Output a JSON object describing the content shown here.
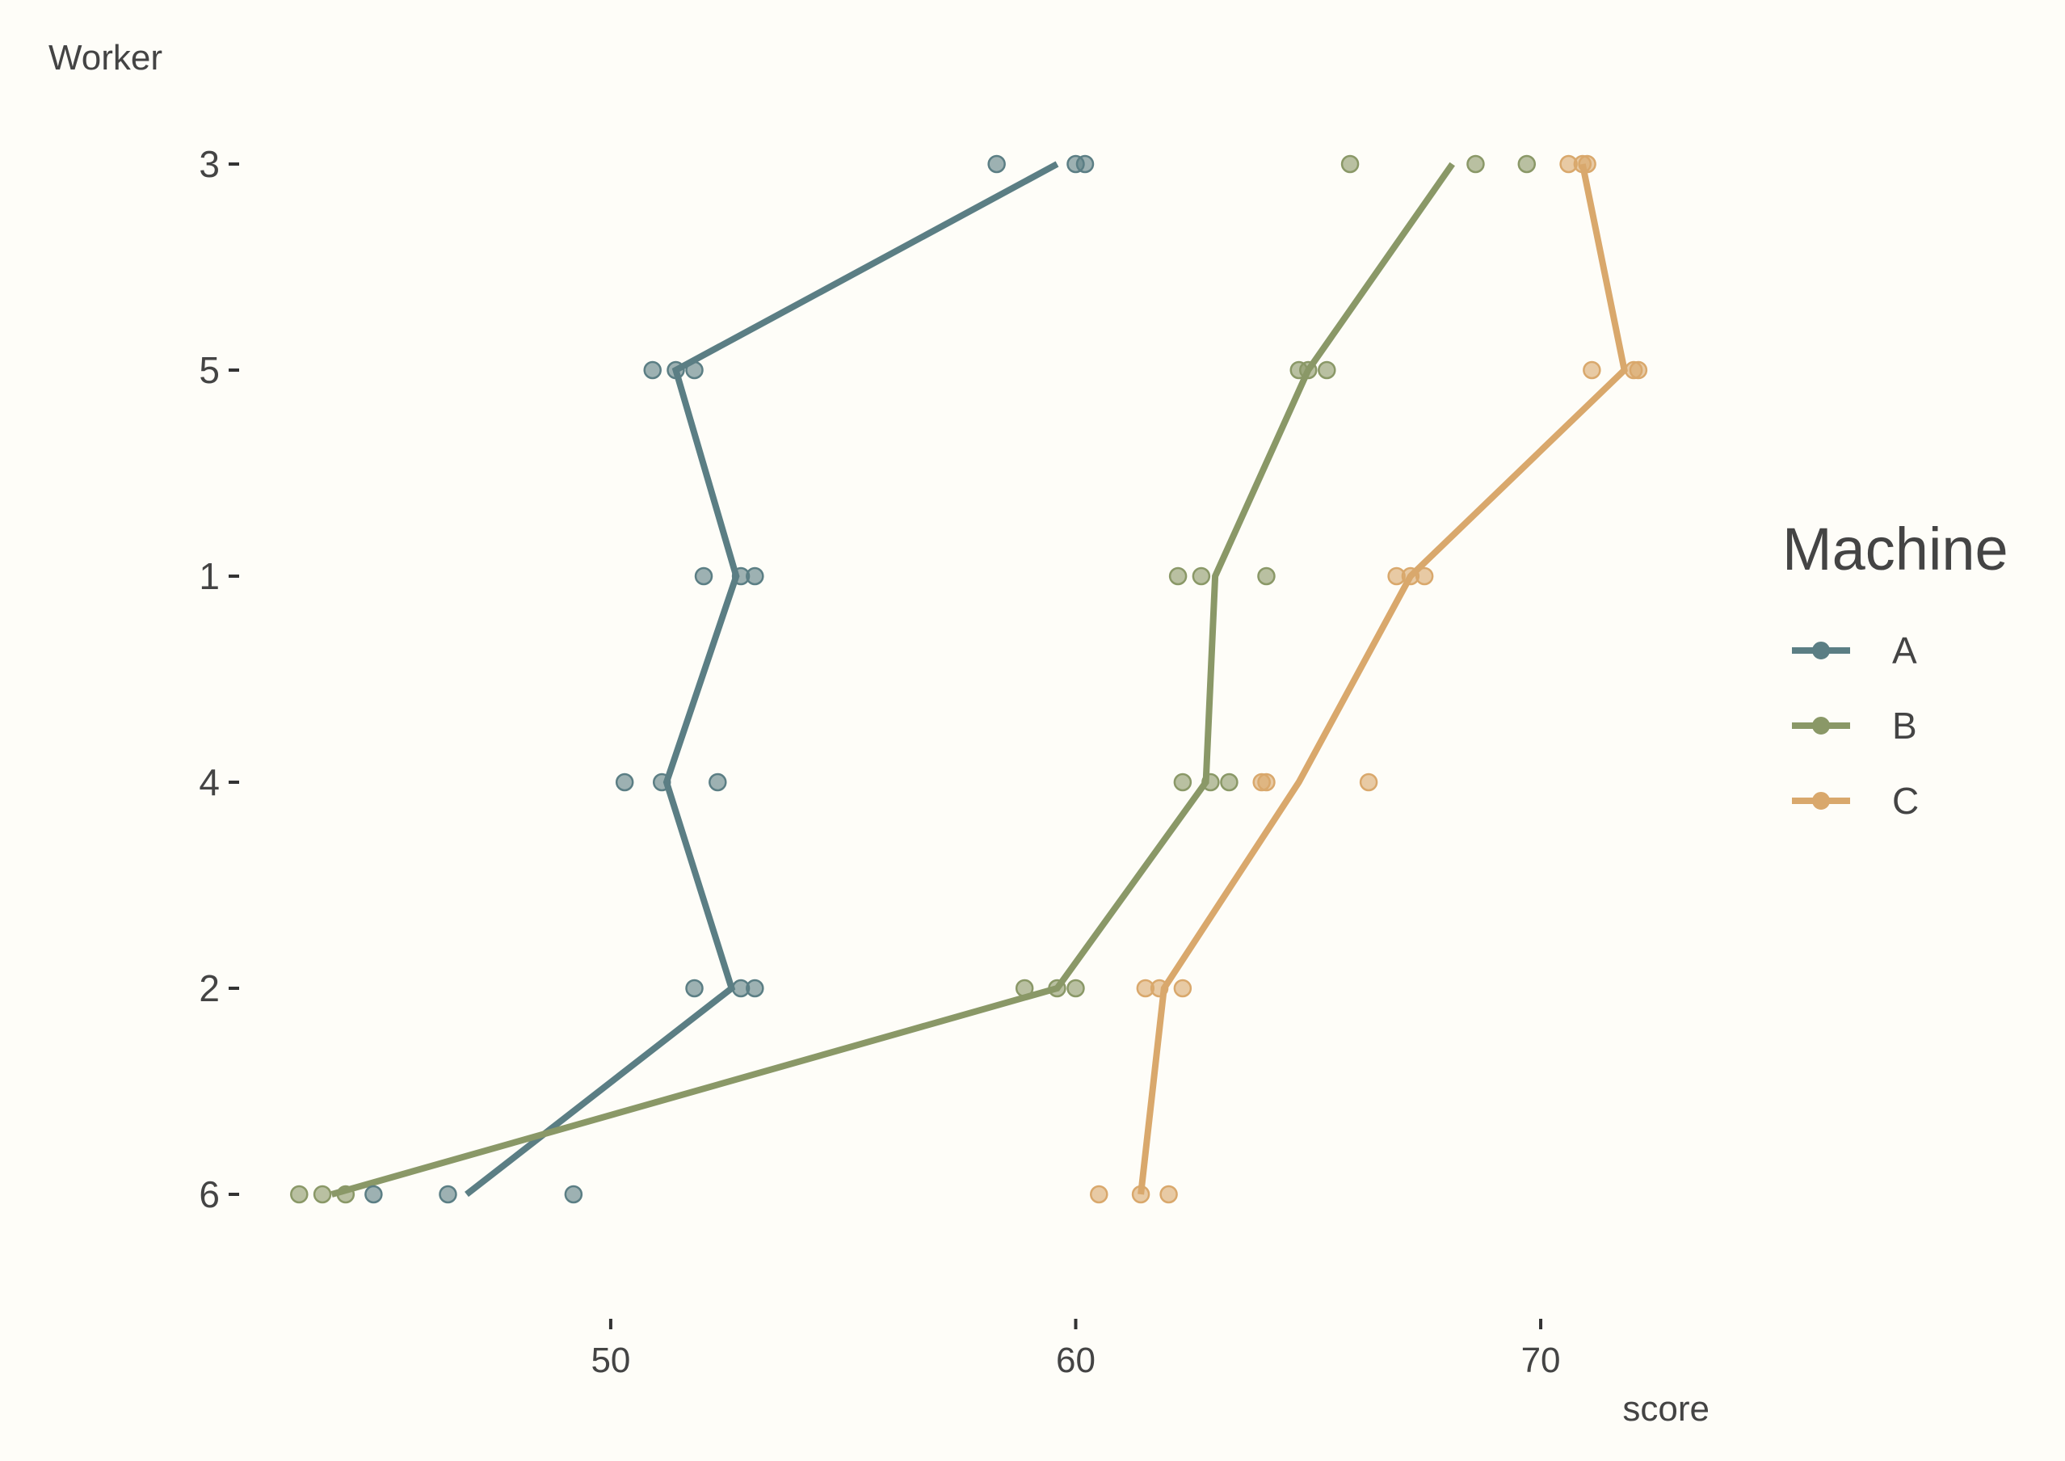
{
  "chart_data": {
    "type": "line",
    "xlabel": "score",
    "ylabel": "Worker",
    "workers": [
      "3",
      "5",
      "1",
      "4",
      "2",
      "6"
    ],
    "x_ticks": [
      50,
      60,
      70
    ],
    "xlim": [
      42.6,
      73.7
    ],
    "grid": false,
    "legend": {
      "title": "Machine",
      "placement": "right",
      "entries": [
        "A",
        "B",
        "C"
      ]
    },
    "series": [
      {
        "name": "A",
        "color": "#5B7E84",
        "means": [
          59.6,
          51.4,
          52.7,
          51.2,
          52.6,
          46.9
        ],
        "points": [
          [
            58.3,
            60.0,
            60.2
          ],
          [
            50.9,
            51.4,
            51.8
          ],
          [
            52.0,
            52.8,
            53.1
          ],
          [
            50.3,
            51.1,
            52.3
          ],
          [
            51.8,
            52.8,
            53.1
          ],
          [
            44.9,
            46.5,
            49.2
          ]
        ]
      },
      {
        "name": "B",
        "color": "#8A9867",
        "means": [
          68.1,
          65.0,
          63.0,
          62.8,
          59.6,
          44.0
        ],
        "points": [
          [
            65.9,
            68.6,
            69.7
          ],
          [
            64.8,
            65.0,
            65.4
          ],
          [
            62.2,
            62.7,
            64.1
          ],
          [
            62.3,
            62.9,
            63.3
          ],
          [
            58.9,
            59.6,
            60.0
          ],
          [
            43.3,
            43.8,
            44.3
          ]
        ]
      },
      {
        "name": "C",
        "color": "#D9A86C",
        "means": [
          70.9,
          71.8,
          67.2,
          64.8,
          61.9,
          61.4
        ],
        "points": [
          [
            70.6,
            70.9,
            71.0
          ],
          [
            71.1,
            72.0,
            72.1
          ],
          [
            66.9,
            67.2,
            67.5
          ],
          [
            64.0,
            64.1,
            66.3
          ],
          [
            61.5,
            61.8,
            62.3
          ],
          [
            60.5,
            61.4,
            62.0
          ]
        ]
      }
    ]
  }
}
